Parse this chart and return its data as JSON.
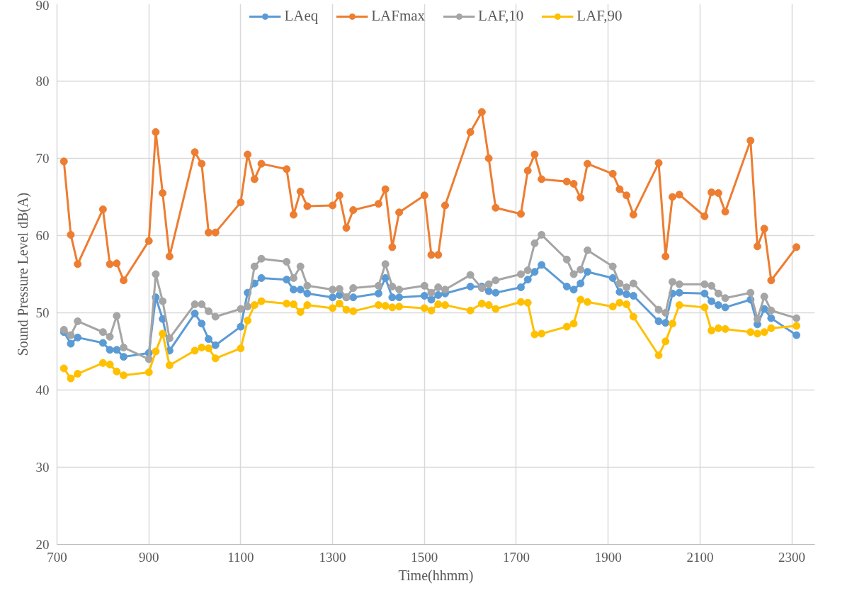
{
  "chart_data": {
    "type": "line",
    "xlabel": "Time(hhmm)",
    "ylabel": "Sound Pressure Level dB(A)",
    "x": [
      715,
      730,
      745,
      800,
      815,
      830,
      845,
      900,
      915,
      930,
      945,
      1000,
      1015,
      1030,
      1045,
      1100,
      1115,
      1130,
      1145,
      1200,
      1215,
      1230,
      1245,
      1300,
      1315,
      1330,
      1345,
      1400,
      1415,
      1430,
      1445,
      1500,
      1515,
      1530,
      1545,
      1600,
      1625,
      1640,
      1655,
      1710,
      1725,
      1740,
      1755,
      1810,
      1825,
      1840,
      1855,
      1910,
      1925,
      1940,
      1955,
      2010,
      2025,
      2040,
      2055,
      2110,
      2125,
      2140,
      2155,
      2210,
      2225,
      2240,
      2255,
      2310
    ],
    "series": [
      {
        "name": "LAeq",
        "color": "#5b9bd5",
        "values": [
          47.5,
          46.0,
          46.8,
          46.1,
          45.2,
          45.2,
          44.3,
          44.8,
          52.0,
          49.2,
          45.1,
          49.9,
          48.6,
          46.6,
          45.8,
          48.2,
          52.6,
          53.8,
          54.5,
          54.3,
          53.0,
          53.0,
          52.5,
          52.0,
          52.3,
          52.0,
          52.0,
          52.5,
          54.5,
          52.0,
          52.0,
          52.2,
          51.7,
          52.3,
          52.5,
          53.4,
          53.4,
          52.8,
          52.6,
          53.3,
          54.3,
          55.3,
          56.2,
          53.4,
          53.0,
          53.8,
          55.3,
          54.5,
          52.7,
          52.4,
          52.2,
          48.9,
          48.7,
          52.5,
          52.6,
          52.5,
          51.5,
          51.0,
          50.7,
          51.7,
          48.5,
          50.5,
          49.3,
          47.1
        ]
      },
      {
        "name": "LAFmax",
        "color": "#ed7d31",
        "values": [
          69.6,
          60.1,
          56.3,
          63.4,
          56.3,
          56.4,
          54.2,
          59.3,
          73.4,
          65.5,
          57.3,
          70.8,
          69.3,
          60.4,
          60.4,
          64.3,
          70.5,
          67.3,
          69.3,
          68.6,
          62.7,
          65.7,
          63.8,
          63.9,
          65.2,
          61.0,
          63.3,
          64.1,
          66.0,
          58.5,
          63.0,
          65.2,
          57.5,
          57.5,
          63.9,
          73.4,
          76.0,
          70.0,
          63.6,
          62.8,
          68.4,
          70.5,
          67.3,
          67.0,
          66.7,
          64.9,
          69.3,
          68.0,
          66.0,
          65.2,
          62.7,
          69.4,
          57.3,
          65.0,
          65.3,
          62.5,
          65.6,
          65.5,
          63.1,
          72.3,
          58.6,
          60.9,
          54.2,
          58.5
        ]
      },
      {
        "name": "LAF,10",
        "color": "#a5a5a5",
        "values": [
          47.8,
          47.1,
          48.9,
          47.5,
          46.9,
          49.6,
          45.5,
          44.0,
          55.0,
          51.5,
          46.7,
          51.1,
          51.1,
          50.2,
          49.5,
          50.5,
          50.8,
          56.0,
          57.0,
          56.6,
          54.5,
          56.0,
          53.5,
          53.0,
          53.1,
          52.0,
          53.2,
          53.5,
          56.3,
          53.4,
          53.0,
          53.5,
          52.6,
          53.3,
          53.0,
          54.9,
          53.2,
          53.7,
          54.2,
          55.0,
          55.5,
          59.0,
          60.1,
          56.9,
          55.0,
          55.6,
          58.1,
          56.0,
          53.8,
          53.3,
          53.8,
          50.4,
          50.0,
          54.0,
          53.7,
          53.7,
          53.5,
          52.5,
          51.9,
          52.6,
          49.2,
          52.1,
          50.3,
          49.3
        ]
      },
      {
        "name": "LAF,90",
        "color": "#ffc000",
        "values": [
          42.8,
          41.5,
          42.1,
          43.5,
          43.3,
          42.4,
          41.9,
          42.3,
          45.0,
          47.3,
          43.2,
          45.1,
          45.5,
          45.4,
          44.1,
          45.4,
          49.0,
          51.0,
          51.5,
          51.2,
          51.1,
          50.1,
          51.0,
          50.6,
          51.2,
          50.4,
          50.2,
          51.0,
          50.9,
          50.7,
          50.8,
          50.6,
          50.3,
          51.1,
          51.0,
          50.3,
          51.2,
          51.0,
          50.5,
          51.4,
          51.3,
          47.2,
          47.3,
          48.2,
          48.6,
          51.7,
          51.4,
          50.8,
          51.3,
          51.1,
          49.5,
          44.5,
          46.3,
          48.6,
          51.0,
          50.7,
          47.7,
          48.0,
          47.9,
          47.5,
          47.3,
          47.5,
          48.0,
          48.3
        ]
      }
    ],
    "xlim": [
      700,
      2350
    ],
    "xticks": [
      700,
      900,
      1100,
      1300,
      1500,
      1700,
      1900,
      2100,
      2300
    ],
    "ylim": [
      20,
      90
    ],
    "yticks": [
      20,
      30,
      40,
      50,
      60,
      70,
      80,
      90
    ],
    "grid": true,
    "legend": "top",
    "marker": "circle",
    "line_style": "solid"
  }
}
